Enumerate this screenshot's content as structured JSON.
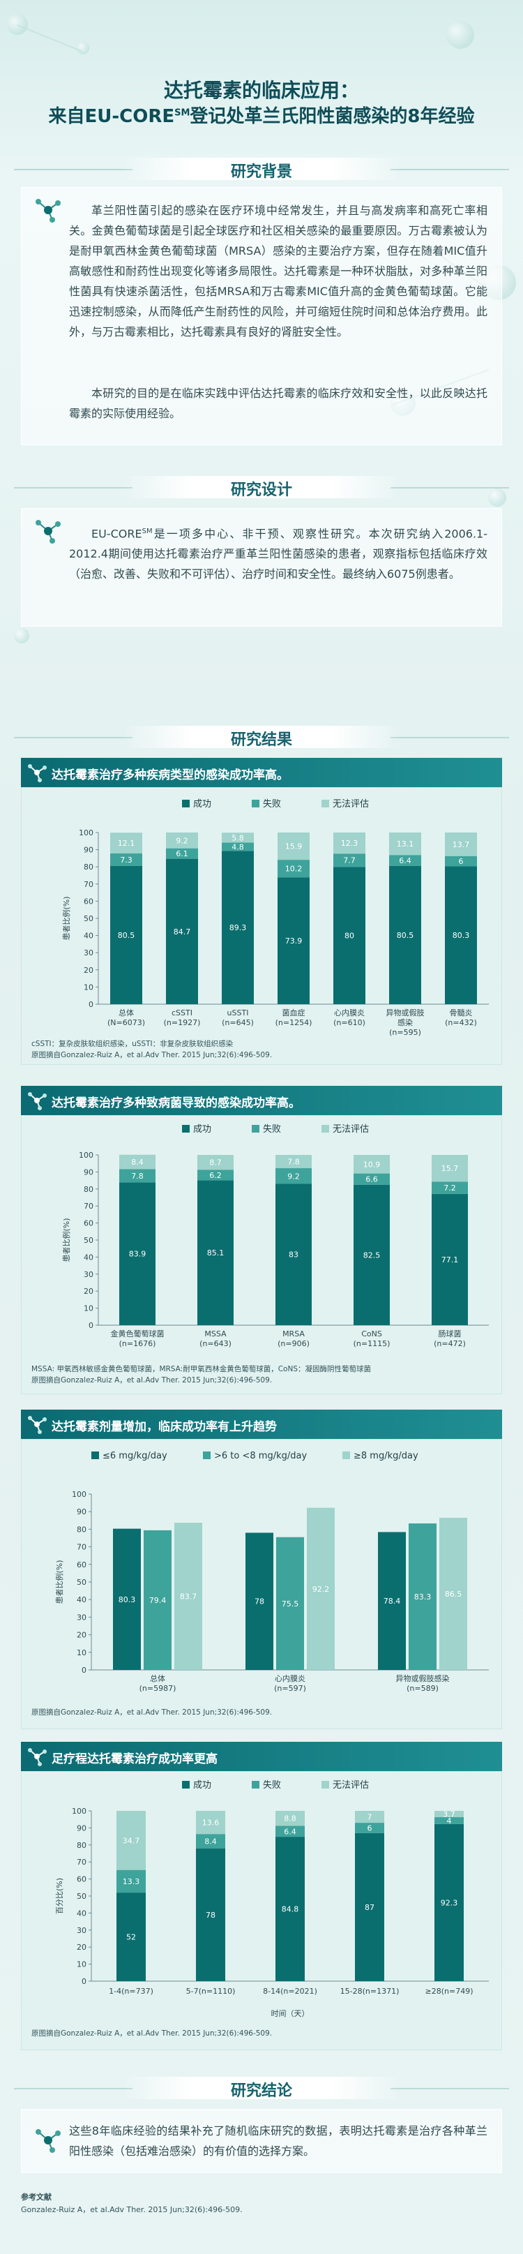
{
  "title": {
    "line1": "达托霉素的临床应用：",
    "line2_pre": "来自EU-CORE",
    "line2_sup": "SM",
    "line2_post": "登记处革兰氏阳性菌感染的8年经验"
  },
  "sections": {
    "background": {
      "heading": "研究背景",
      "p1": "革兰阳性菌引起的感染在医疗环境中经常发生，并且与高发病率和高死亡率相关。金黄色葡萄球菌是引起全球医疗和社区相关感染的最重要原因。万古霉素被认为是耐甲氧西林金黄色葡萄球菌（MRSA）感染的主要治疗方案，但存在随着MIC值升高敏感性和耐药性出现变化等诸多局限性。达托霉素是一种环状脂肽，对多种革兰阳性菌具有快速杀菌活性，包括MRSA和万古霉素MIC值升高的金黄色葡萄球菌。它能迅速控制感染，从而降低产生耐药性的风险，并可缩短住院时间和总体治疗费用。此外，与万古霉素相比，达托霉素具有良好的肾脏安全性。",
      "p2": "本研究的目的是在临床实践中评估达托霉素的临床疗效和安全性，以此反映达托霉素的实际使用经验。"
    },
    "design": {
      "heading": "研究设计",
      "pre": "EU-CORE",
      "sup": "SM",
      "text": "是一项多中心、非干预、观察性研究。本次研究纳入2006.1-2012.4期间使用达托霉素治疗严重革兰阳性菌感染的患者，观察指标包括临床疗效（治愈、改善、失败和不可评估）、治疗时间和安全性。最终纳入6075例患者。"
    },
    "results": {
      "heading": "研究结果"
    },
    "conclusion": {
      "heading": "研究结论",
      "text": "这些8年临床经验的结果补充了随机临床研究的数据，表明达托霉素是治疗各种革兰阳性感染（包括难治感染）的有价值的选择方案。"
    }
  },
  "colors": {
    "success": "#0b6e6e",
    "failure": "#3ea39b",
    "unevaluable": "#9fd3cb",
    "dose1": "#0b6e6e",
    "dose2": "#3ea39b",
    "dose3": "#9fd3cb"
  },
  "chart_data": [
    {
      "type": "bar",
      "stacked": true,
      "title": "达托霉素治疗多种疾病类型的感染成功率高。",
      "ylabel": "患者比例(%)",
      "ylim": [
        0,
        100
      ],
      "yticks": [
        0,
        10,
        20,
        30,
        40,
        50,
        60,
        70,
        80,
        90,
        100
      ],
      "categories": [
        [
          "总体",
          "(N=6073)"
        ],
        [
          "cSSTI",
          "(n=1927)"
        ],
        [
          "uSSTI",
          "(n=645)"
        ],
        [
          "菌血症",
          "(n=1254)"
        ],
        [
          "心内膜炎",
          "(n=610)"
        ],
        [
          "异物或假肢",
          "感染",
          "(n=595)"
        ],
        [
          "骨髓炎",
          "(n=432)"
        ]
      ],
      "series": [
        {
          "name": "成功",
          "values": [
            80.5,
            84.7,
            89.3,
            73.9,
            80.0,
            80.5,
            80.3
          ]
        },
        {
          "name": "失败",
          "values": [
            7.3,
            6.1,
            4.8,
            10.2,
            7.7,
            6.4,
            6.0
          ]
        },
        {
          "name": "无法评估",
          "values": [
            12.1,
            9.2,
            5.8,
            15.9,
            12.3,
            13.1,
            13.7
          ]
        }
      ],
      "notes": [
        "cSSTI：复杂皮肤软组织感染，uSSTI：非复杂皮肤软组织感染",
        "原图摘自Gonzalez-Ruiz A，et al.Adv Ther. 2015 Jun;32(6):496-509."
      ]
    },
    {
      "type": "bar",
      "stacked": true,
      "title": "达托霉素治疗多种致病菌导致的感染成功率高。",
      "ylabel": "患者比例(%)",
      "ylim": [
        0,
        100
      ],
      "yticks": [
        0,
        10,
        20,
        30,
        40,
        50,
        60,
        70,
        80,
        90,
        100
      ],
      "categories": [
        [
          "金黄色葡萄球菌",
          "(n=1676)"
        ],
        [
          "MSSA",
          "(n=643)"
        ],
        [
          "MRSA",
          "(n=906)"
        ],
        [
          "CoNS",
          "(n=1115)"
        ],
        [
          "肠球菌",
          "(n=472)"
        ]
      ],
      "series": [
        {
          "name": "成功",
          "values": [
            83.9,
            85.1,
            83.0,
            82.5,
            77.1
          ]
        },
        {
          "name": "失败",
          "values": [
            7.8,
            6.2,
            9.2,
            6.6,
            7.2
          ]
        },
        {
          "name": "无法评估",
          "values": [
            8.4,
            8.7,
            7.8,
            10.9,
            15.7
          ]
        }
      ],
      "notes": [
        "MSSA: 甲氧西林敏感金黄色葡萄球菌，MRSA:耐甲氧西林金黄色葡萄球菌，CoNS：凝固酶阴性葡萄球菌",
        "原图摘自Gonzalez-Ruiz A，et al.Adv Ther. 2015 Jun;32(6):496-509."
      ]
    },
    {
      "type": "bar",
      "stacked": false,
      "title": "达托霉素剂量增加，临床成功率有上升趋势",
      "ylabel": "患者比例(%)",
      "ylim": [
        0,
        100
      ],
      "yticks": [
        0,
        10,
        20,
        30,
        40,
        50,
        60,
        70,
        80,
        90,
        100
      ],
      "categories": [
        [
          "总体",
          "(n=5987)"
        ],
        [
          "心内膜炎",
          "(n=597)"
        ],
        [
          "异物或假肢感染",
          "(n=589)"
        ]
      ],
      "series": [
        {
          "name": "≤6 mg/kg/day",
          "values": [
            80.3,
            78.0,
            78.4
          ]
        },
        {
          "name": ">6 to <8 mg/kg/day",
          "values": [
            79.4,
            75.5,
            83.3
          ]
        },
        {
          "name": "≥8 mg/kg/day",
          "values": [
            83.7,
            92.2,
            86.5
          ]
        }
      ],
      "notes": [
        "原图摘自Gonzalez-Ruiz A，et al.Adv Ther. 2015 Jun;32(6):496-509."
      ]
    },
    {
      "type": "bar",
      "stacked": true,
      "title": "足疗程达托霉素治疗成功率更高",
      "ylabel": "百分比(%)",
      "xlabel": "时间（天）",
      "ylim": [
        0,
        100
      ],
      "yticks": [
        0,
        10,
        20,
        30,
        40,
        50,
        60,
        70,
        80,
        90,
        100
      ],
      "categories": [
        [
          "1-4(n=737)"
        ],
        [
          "5-7(n=1110)"
        ],
        [
          "8-14(n=2021)"
        ],
        [
          "15-28(n=1371)"
        ],
        [
          "≥28(n=749)"
        ]
      ],
      "series": [
        {
          "name": "成功",
          "values": [
            52,
            78,
            84.8,
            87,
            92.3
          ]
        },
        {
          "name": "失败",
          "values": [
            13.3,
            8.4,
            6.4,
            6,
            4
          ]
        },
        {
          "name": "无法评估",
          "values": [
            34.7,
            13.6,
            8.8,
            7,
            3.7
          ]
        }
      ],
      "notes": [
        "原图摘自Gonzalez-Ruiz A，et al.Adv Ther. 2015 Jun;32(6):496-509."
      ]
    }
  ],
  "references": {
    "heading": "参考文献",
    "text": "Gonzalez-Ruiz A，et al.Adv Ther. 2015 Jun;32(6):496-509."
  }
}
